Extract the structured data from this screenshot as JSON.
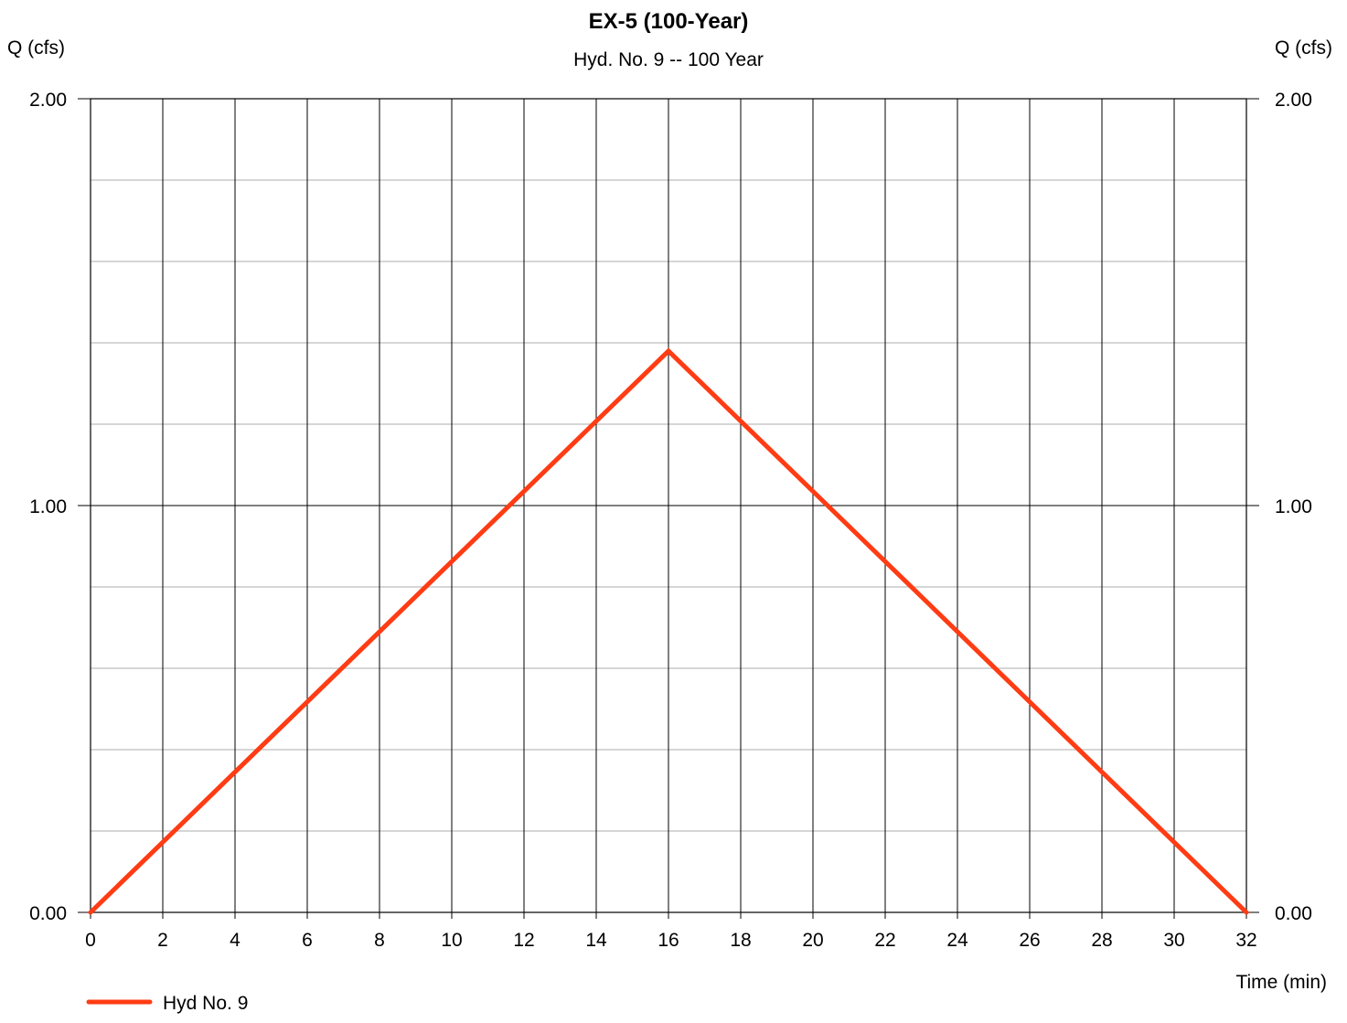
{
  "chart_data": {
    "type": "line",
    "title": "EX-5 (100-Year)",
    "subtitle": "Hyd. No. 9 -- 100 Year",
    "ylabel_left": "Q (cfs)",
    "ylabel_right": "Q (cfs)",
    "xlabel": "Time (min)",
    "xlim": [
      0,
      32
    ],
    "ylim": [
      0,
      2
    ],
    "x_ticks": [
      0,
      2,
      4,
      6,
      8,
      10,
      12,
      14,
      16,
      18,
      20,
      22,
      24,
      26,
      28,
      30,
      32
    ],
    "y_ticks": [
      "0.00",
      "1.00",
      "2.00"
    ],
    "y_tick_values": [
      0,
      1,
      2
    ],
    "y_minor_step": 0.2,
    "grid": true,
    "legend_position": "bottom-left",
    "series": [
      {
        "name": "Hyd No. 9",
        "color": "#ff3c14",
        "x": [
          0,
          16,
          32
        ],
        "y": [
          0,
          1.38,
          0
        ]
      }
    ]
  }
}
